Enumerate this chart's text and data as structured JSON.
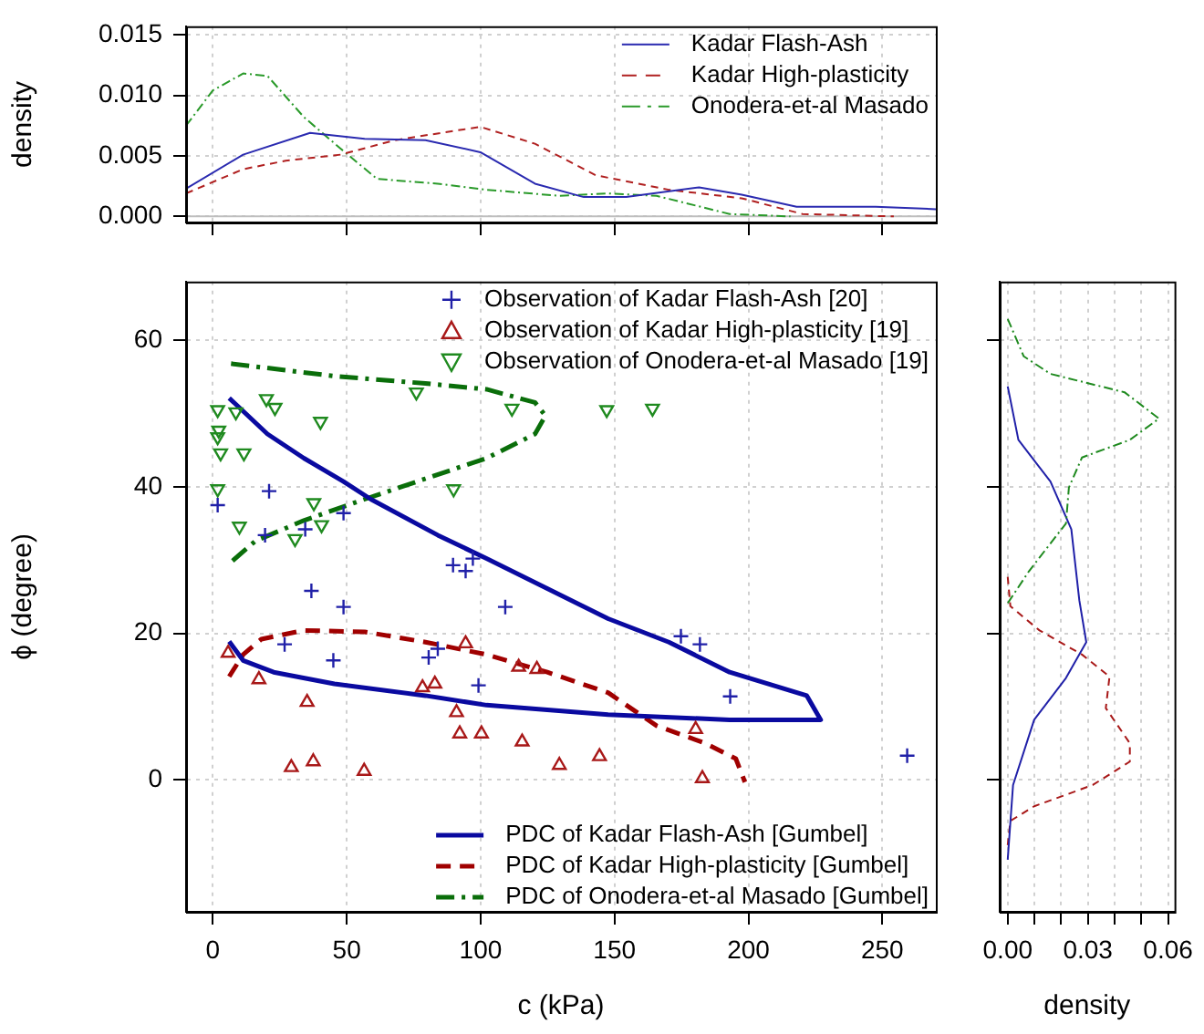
{
  "chart_data": [
    {
      "type": "line",
      "ylabel": "density",
      "xlim": [
        -10,
        270
      ],
      "xticks": [
        0,
        50,
        100,
        150,
        200,
        250
      ],
      "ylim": [
        -0.0005,
        0.0157
      ],
      "yticks": [
        {
          "value": 0,
          "label": "0.000"
        },
        {
          "value": 0.005,
          "label": "0.005"
        },
        {
          "value": 0.01,
          "label": "0.010"
        },
        {
          "value": 0.015,
          "label": "0.015"
        }
      ],
      "tick_labels": "y",
      "grid": true,
      "legend": "top right",
      "ref_lines": [
        {
          "axis": "y",
          "value": 0,
          "color": "#bebebe"
        }
      ],
      "series": [
        {
          "name": "Kadar Flash-Ash",
          "color": "#2a2ab0",
          "line_style": "solid",
          "x": [
            -10,
            11.3,
            36.3,
            56.7,
            79.4,
            99.9,
            120.3,
            138.5,
            154.4,
            181.6,
            197.5,
            218,
            247.5,
            270
          ],
          "values": [
            0.0023,
            0.0051,
            0.0069,
            0.0064,
            0.0063,
            0.0053,
            0.0027,
            0.0016,
            0.0016,
            0.0024,
            0.0018,
            0.0008,
            0.0008,
            0.0006
          ]
        },
        {
          "name": "Kadar High-plasticity",
          "color": "#b02020",
          "line_style": "dashed",
          "x": [
            -10,
            11.3,
            27.2,
            47.7,
            68.1,
            99.9,
            120.3,
            143,
            170.3,
            197.5,
            220.2,
            254.3
          ],
          "values": [
            0.0019,
            0.0039,
            0.0046,
            0.0051,
            0.0063,
            0.0074,
            0.006,
            0.0034,
            0.0022,
            0.0015,
            0.0002,
            0
          ]
        },
        {
          "name": "Onodera-et-al Masado",
          "color": "#2a9a2a",
          "line_style": "dashdot",
          "x": [
            -10,
            0,
            11.3,
            20.4,
            34,
            47.7,
            61.3,
            84,
            102.2,
            129.4,
            147.6,
            165.7,
            193,
            215.7
          ],
          "values": [
            0.0075,
            0.0104,
            0.0118,
            0.0116,
            0.0082,
            0.0056,
            0.0031,
            0.0027,
            0.0022,
            0.0017,
            0.0019,
            0.0017,
            0.0002,
            0
          ]
        }
      ]
    },
    {
      "type": "scatter",
      "xlabel": "c (kPa)",
      "ylabel": "ϕ (degree)",
      "xlim": [
        -10,
        270
      ],
      "xticks": [
        0,
        50,
        100,
        150,
        200,
        250
      ],
      "ylim": [
        -18,
        68
      ],
      "yticks": [
        0,
        20,
        40,
        60
      ],
      "grid": true,
      "legend": "right",
      "series": [
        {
          "name": "Observation of Kadar Flash-Ash [20]",
          "color": "#2020a8",
          "marker": "cross",
          "x": [
            1.8,
            21,
            19.5,
            34.5,
            48.8,
            36.8,
            48.8,
            89.7,
            94.4,
            97.1,
            109.2,
            26.8,
            45,
            80.6,
            84,
            99.2,
            174.8,
            181.9,
            193.2,
            259.3
          ],
          "values": [
            37.5,
            39.4,
            33.4,
            34.2,
            36.4,
            25.8,
            23.6,
            29.3,
            28.5,
            30.2,
            23.6,
            18.5,
            16.3,
            16.7,
            17.9,
            12.9,
            19.6,
            18.5,
            11.4,
            3.3
          ]
        },
        {
          "name": "Observation of Kadar High-plasticity [19]",
          "color": "#a81818",
          "marker": "triangle",
          "x": [
            5.7,
            17.2,
            35.2,
            29.3,
            37.5,
            56.5,
            78.3,
            82.9,
            94.4,
            91,
            92.2,
            100.3,
            114.2,
            121,
            115.5,
            129.4,
            144.4,
            180.3,
            182.8
          ],
          "values": [
            17.3,
            13.7,
            10.6,
            1.7,
            2.5,
            1.2,
            12.6,
            13.1,
            18.6,
            9.2,
            6.3,
            6.3,
            15.4,
            15.1,
            5.2,
            2,
            3.2,
            6.9,
            0.2
          ]
        },
        {
          "name": "Observation of Onodera-et-al Masado [19]",
          "color": "#1f8a1f",
          "marker": "triangle-down",
          "x": [
            1.8,
            8.6,
            2.2,
            1.8,
            2.9,
            11.6,
            1.8,
            9.9,
            20,
            23.2,
            40.2,
            37.7,
            40.6,
            30.7,
            76,
            89.9,
            111.7,
            147.1,
            164.2
          ],
          "values": [
            50.5,
            50.2,
            47.7,
            46.8,
            44.6,
            44.6,
            39.7,
            34.6,
            52,
            50.8,
            48.9,
            37.8,
            34.8,
            32.9,
            52.9,
            39.7,
            50.7,
            50.5,
            50.7
          ]
        },
        {
          "type": "line",
          "name": "PDC of Kadar Flash-Ash [Gumbel]",
          "color": "#0a0aa0",
          "line_style": "solid",
          "x": [
            6.1,
            20.4,
            34,
            48.8,
            59,
            84,
            102.2,
            124.9,
            147.6,
            170.3,
            193,
            221.8,
            227,
            193,
            147.6,
            102.2,
            79.4,
            45.4,
            22.7,
            11.3,
            6.1
          ],
          "values": [
            52.1,
            47.2,
            43.9,
            40.7,
            38.3,
            33.4,
            30.2,
            26.1,
            22,
            18.8,
            14.7,
            11.5,
            8.2,
            8.2,
            8.9,
            10.2,
            11.5,
            13.1,
            14.7,
            16.3,
            18.9
          ]
        },
        {
          "type": "line",
          "name": "PDC of Kadar High-plasticity [Gumbel]",
          "color": "#a00000",
          "line_style": "dashed",
          "x": [
            6.1,
            11.3,
            18.1,
            34,
            56.7,
            79.4,
            102.2,
            124.9,
            147.6,
            165.7,
            183.9,
            195.3,
            198.7
          ],
          "values": [
            14.1,
            17.1,
            19.2,
            20.4,
            20.2,
            18.8,
            17.1,
            14.7,
            11.9,
            7.4,
            5,
            2.9,
            -0.3
          ]
        },
        {
          "type": "line",
          "name": "PDC of Onodera-et-al Masado [Gumbel]",
          "color": "#0a6e0a",
          "line_style": "dashdot",
          "x": [
            6.8,
            45.4,
            79.4,
            102.2,
            120.3,
            124.2,
            120.3,
            102.2,
            79.4,
            56.7,
            34,
            15.9,
            6.1
          ],
          "values": [
            56.8,
            55.1,
            54.1,
            53.3,
            51.5,
            49.7,
            47.2,
            43.9,
            41.1,
            38.3,
            35.4,
            32.6,
            29.5
          ]
        }
      ]
    },
    {
      "type": "line",
      "xlabel": "density",
      "xlim": [
        -0.003,
        0.0624
      ],
      "xticks": [
        {
          "value": 0,
          "label": "0.00"
        },
        {
          "value": 0.01,
          "label": null
        },
        {
          "value": 0.02,
          "label": null
        },
        {
          "value": 0.03,
          "label": "0.03"
        },
        {
          "value": 0.04,
          "label": null
        },
        {
          "value": 0.05,
          "label": null
        },
        {
          "value": 0.06,
          "label": "0.06"
        }
      ],
      "ylim": [
        -18,
        68
      ],
      "yticks": [
        0,
        20,
        40,
        60
      ],
      "tick_labels": "x",
      "grid": true,
      "series": [
        {
          "color": "#1f8a1f",
          "line_style": "dashdot",
          "x": [
            0,
            0.006,
            0.016,
            0.0437,
            0.0566,
            0.0457,
            0.0278,
            0.0229,
            0.0218,
            0.008,
            0
          ],
          "values": [
            62.9,
            57.8,
            55.4,
            52.9,
            49.3,
            46.4,
            44,
            39.9,
            35,
            28.5,
            24.1
          ]
        },
        {
          "color": "#2020a8",
          "line_style": "solid",
          "x": [
            0,
            0.004,
            0.016,
            0.0238,
            0.0268,
            0.0294,
            0.0218,
            0.0099,
            0.002,
            0
          ],
          "values": [
            53.7,
            46.4,
            40.7,
            34.2,
            24.5,
            18.8,
            13.9,
            8.2,
            -0.7,
            -10.9
          ]
        },
        {
          "color": "#a81818",
          "line_style": "dashed",
          "x": [
            0,
            0.001,
            0.0119,
            0.0278,
            0.0381,
            0.0367,
            0.0457,
            0.0457,
            0.0318,
            0.0099,
            0.001,
            0
          ],
          "values": [
            27.7,
            23.7,
            20.4,
            17.1,
            14.1,
            9.8,
            5,
            2.5,
            -0.7,
            -3.6,
            -5.6,
            -8.9
          ]
        }
      ]
    }
  ]
}
